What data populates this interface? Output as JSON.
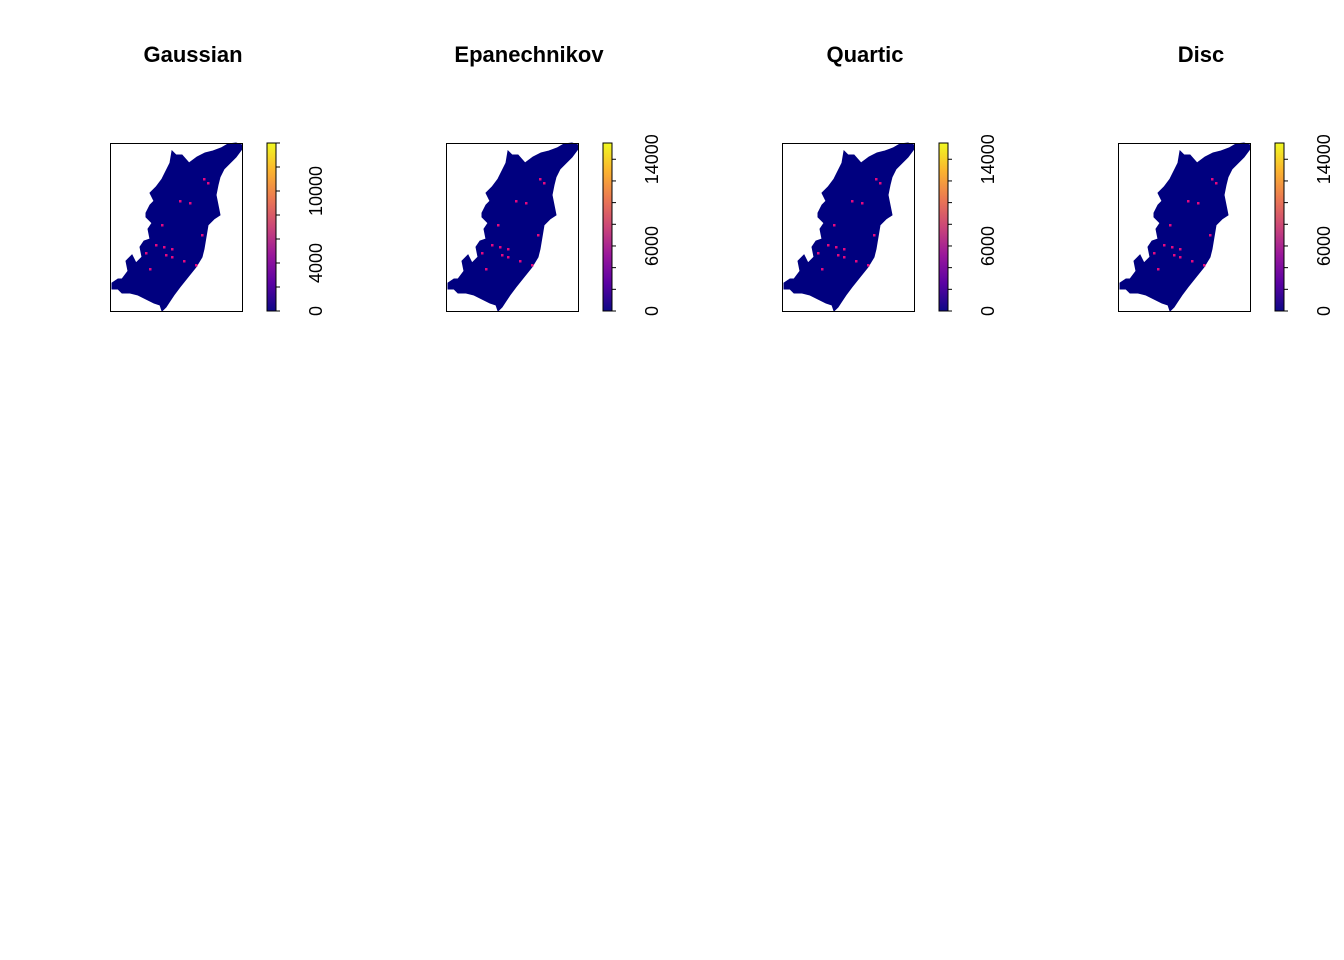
{
  "figure": {
    "background": "#ffffff",
    "map_fill": "#00007F",
    "hotspot_color": "#E5097F",
    "palette": [
      "#0D0887",
      "#5B02A3",
      "#9A179B",
      "#CB4678",
      "#EB7852",
      "#FBB32F",
      "#F0F921"
    ]
  },
  "chart_data": [
    {
      "type": "heatmap",
      "title": "Gaussian",
      "legend": {
        "ticks": [
          0,
          4000,
          10000
        ],
        "tick_labels": [
          "0",
          "4000",
          "10000"
        ],
        "range": [
          0,
          14000
        ]
      }
    },
    {
      "type": "heatmap",
      "title": "Epanechnikov",
      "legend": {
        "ticks": [
          0,
          6000,
          14000
        ],
        "tick_labels": [
          "0",
          "6000",
          "14000"
        ],
        "range": [
          0,
          15500
        ]
      }
    },
    {
      "type": "heatmap",
      "title": "Quartic",
      "legend": {
        "ticks": [
          0,
          6000,
          14000
        ],
        "tick_labels": [
          "0",
          "6000",
          "14000"
        ],
        "range": [
          0,
          15500
        ]
      }
    },
    {
      "type": "heatmap",
      "title": "Disc",
      "legend": {
        "ticks": [
          0,
          6000,
          14000
        ],
        "tick_labels": [
          "0",
          "6000",
          "14000"
        ],
        "range": [
          0,
          15500
        ]
      }
    }
  ]
}
